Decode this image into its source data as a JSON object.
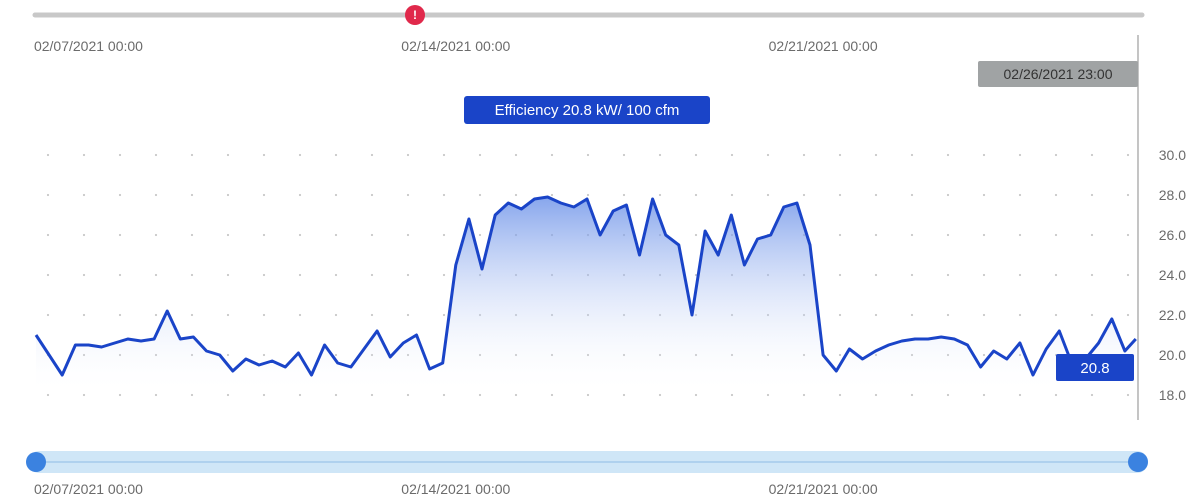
{
  "chart_data": {
    "type": "area",
    "title": "Efficiency 20.8 kW/ 100 cfm",
    "x_tick_labels": [
      "02/07/2021 00:00",
      "02/14/2021 00:00",
      "02/21/2021 00:00"
    ],
    "x_ticks": [
      "2021-02-07T00:00",
      "2021-02-14T00:00",
      "2021-02-21T00:00"
    ],
    "x_range": [
      "2021-02-06T00:00",
      "2021-02-27T00:00"
    ],
    "y_ticks": [
      "18.0",
      "20.0",
      "22.0",
      "24.0",
      "26.0",
      "28.0",
      "30.0"
    ],
    "ylim": [
      18,
      30
    ],
    "grid": true,
    "cursor_label": "02/26/2021 23:00",
    "current_value_label": "20.8",
    "series": [
      {
        "x": [
          "2021-02-06T00:00",
          "2021-02-06T06:00",
          "2021-02-06T12:00",
          "2021-02-06T18:00",
          "2021-02-07T00:00",
          "2021-02-07T06:00",
          "2021-02-07T12:00",
          "2021-02-07T18:00",
          "2021-02-08T00:00",
          "2021-02-08T06:00",
          "2021-02-08T12:00",
          "2021-02-08T18:00",
          "2021-02-09T00:00",
          "2021-02-09T06:00",
          "2021-02-09T12:00",
          "2021-02-09T18:00",
          "2021-02-10T00:00",
          "2021-02-10T06:00",
          "2021-02-10T12:00",
          "2021-02-10T18:00",
          "2021-02-11T00:00",
          "2021-02-11T06:00",
          "2021-02-11T12:00",
          "2021-02-11T18:00",
          "2021-02-12T00:00",
          "2021-02-12T06:00",
          "2021-02-12T12:00",
          "2021-02-12T18:00",
          "2021-02-13T00:00",
          "2021-02-13T06:00",
          "2021-02-13T12:00",
          "2021-02-13T18:00",
          "2021-02-14T00:00",
          "2021-02-14T06:00",
          "2021-02-14T12:00",
          "2021-02-14T18:00",
          "2021-02-15T00:00",
          "2021-02-15T06:00",
          "2021-02-15T12:00",
          "2021-02-15T18:00",
          "2021-02-16T00:00",
          "2021-02-16T06:00",
          "2021-02-16T12:00",
          "2021-02-16T18:00",
          "2021-02-17T00:00",
          "2021-02-17T06:00",
          "2021-02-17T12:00",
          "2021-02-17T18:00",
          "2021-02-18T00:00",
          "2021-02-18T06:00",
          "2021-02-18T12:00",
          "2021-02-18T18:00",
          "2021-02-19T00:00",
          "2021-02-19T06:00",
          "2021-02-19T12:00",
          "2021-02-19T18:00",
          "2021-02-20T00:00",
          "2021-02-20T06:00",
          "2021-02-20T12:00",
          "2021-02-20T18:00",
          "2021-02-21T00:00",
          "2021-02-21T06:00",
          "2021-02-21T12:00",
          "2021-02-21T18:00",
          "2021-02-22T00:00",
          "2021-02-22T06:00",
          "2021-02-22T12:00",
          "2021-02-22T18:00",
          "2021-02-23T00:00",
          "2021-02-23T06:00",
          "2021-02-23T12:00",
          "2021-02-23T18:00",
          "2021-02-24T00:00",
          "2021-02-24T06:00",
          "2021-02-24T12:00",
          "2021-02-24T18:00",
          "2021-02-25T00:00",
          "2021-02-25T06:00",
          "2021-02-25T12:00",
          "2021-02-25T18:00",
          "2021-02-26T00:00",
          "2021-02-26T06:00",
          "2021-02-26T12:00",
          "2021-02-26T18:00",
          "2021-02-26T23:00"
        ],
        "y": [
          21.0,
          20.0,
          19.0,
          20.5,
          20.5,
          20.4,
          20.6,
          20.8,
          20.7,
          20.8,
          22.2,
          20.8,
          20.9,
          20.2,
          20.0,
          19.2,
          19.8,
          19.5,
          19.7,
          19.4,
          20.1,
          19.0,
          20.5,
          19.6,
          19.4,
          20.3,
          21.2,
          19.9,
          20.6,
          21.0,
          19.3,
          19.6,
          24.5,
          26.8,
          24.3,
          27.0,
          27.6,
          27.3,
          27.8,
          27.9,
          27.6,
          27.4,
          27.8,
          26.0,
          27.2,
          27.5,
          25.0,
          27.8,
          26.0,
          25.5,
          22.0,
          26.2,
          25.0,
          27.0,
          24.5,
          25.8,
          26.0,
          27.4,
          27.6,
          25.5,
          20.0,
          19.2,
          20.3,
          19.8,
          20.2,
          20.5,
          20.7,
          20.8,
          20.8,
          20.9,
          20.8,
          20.5,
          19.4,
          20.2,
          19.8,
          20.6,
          19.0,
          20.3,
          21.2,
          19.5,
          19.8,
          20.6,
          21.8,
          20.2,
          20.8
        ]
      }
    ]
  },
  "colors": {
    "line": "#1a44c8",
    "label_bg": "#1a44c8",
    "cursor_bg": "#a0a3a4",
    "alert": "#e0294b",
    "slider_track": "#cfe6f7",
    "slider_handle": "#3b82e0",
    "grid_dot": "#c8c8c8",
    "axis": "#bdbdbd"
  },
  "icons": {
    "alert_marker": "alert-icon"
  },
  "alert_marker_glyph": "!"
}
